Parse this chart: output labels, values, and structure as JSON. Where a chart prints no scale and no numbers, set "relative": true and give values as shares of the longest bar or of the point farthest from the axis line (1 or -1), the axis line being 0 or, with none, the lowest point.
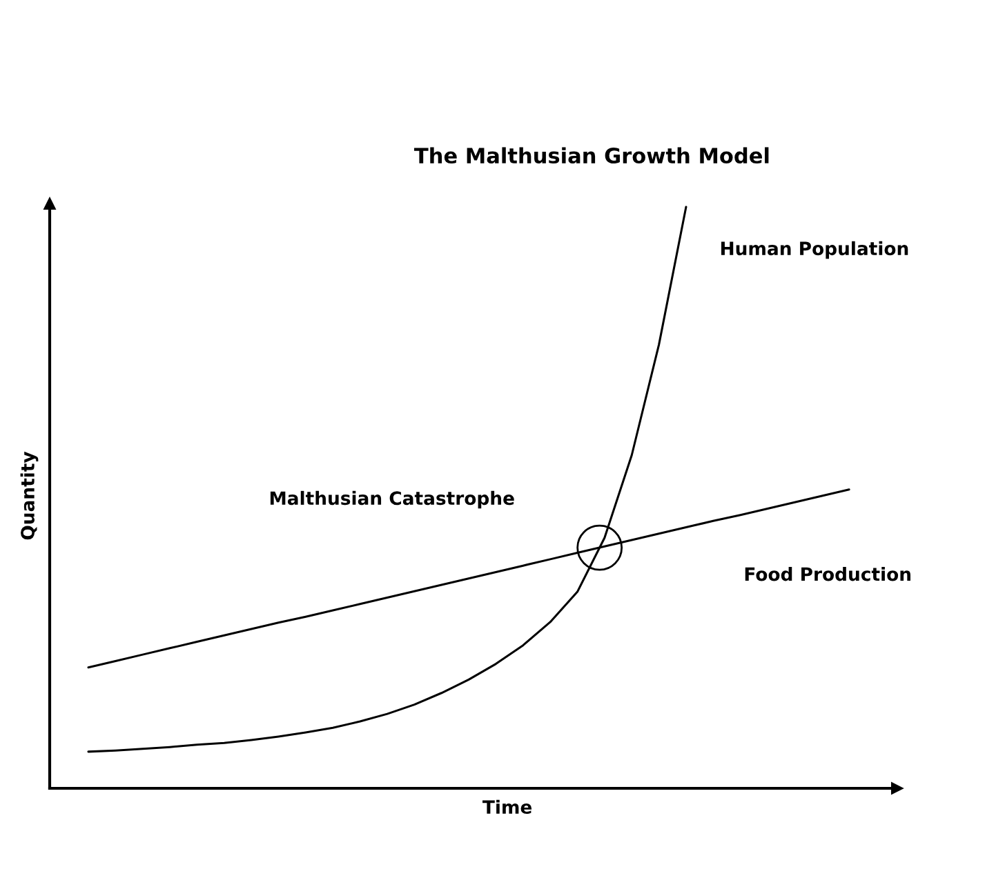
{
  "chart_data": {
    "type": "line",
    "title": "The Malthusian Growth Model",
    "xlabel": "Time",
    "ylabel": "Quantity",
    "relative": true,
    "categories": [
      null,
      null,
      null,
      null,
      null,
      null,
      null,
      null,
      null,
      null,
      null,
      null,
      null,
      null,
      null,
      null,
      null,
      null,
      null,
      null,
      null,
      null,
      null,
      null,
      null,
      null,
      null,
      null,
      null
    ],
    "series": [
      {
        "name": "Human Population",
        "color": "#000000",
        "values": [
          0.063,
          0.065,
          0.068,
          0.071,
          0.075,
          0.078,
          0.083,
          0.089,
          0.096,
          0.104,
          0.115,
          0.128,
          0.144,
          0.164,
          0.187,
          0.214,
          0.246,
          0.286,
          0.338,
          0.431,
          0.573,
          0.763,
          1.0,
          null,
          null,
          null,
          null,
          null,
          null
        ]
      },
      {
        "name": "Food Production",
        "color": "#000000",
        "values": [
          0.208,
          0.219,
          0.23,
          0.241,
          0.252,
          0.263,
          0.274,
          0.285,
          0.295,
          0.306,
          0.317,
          0.328,
          0.339,
          0.35,
          0.361,
          0.372,
          0.383,
          0.394,
          0.405,
          0.416,
          0.427,
          0.438,
          0.449,
          0.46,
          0.47,
          0.481,
          0.492,
          0.503,
          0.514
        ]
      }
    ],
    "annotations": [
      "Malthusian Catastrophe"
    ]
  }
}
